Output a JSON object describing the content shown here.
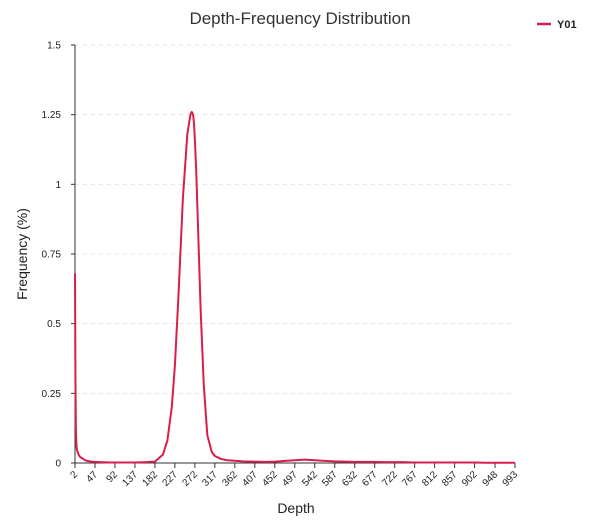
{
  "chart_data": {
    "type": "line",
    "title": "Depth-Frequency Distribution",
    "xlabel": "Depth",
    "ylabel": "Frequency (%)",
    "xlim": [
      2,
      993
    ],
    "ylim": [
      0,
      1.5
    ],
    "grid": true,
    "legend_position": "top-right",
    "x_ticks": [
      "2",
      "47",
      "92",
      "137",
      "182",
      "227",
      "272",
      "317",
      "362",
      "407",
      "452",
      "497",
      "542",
      "587",
      "632",
      "677",
      "722",
      "767",
      "812",
      "857",
      "902",
      "948",
      "993"
    ],
    "y_ticks": [
      "0",
      "0.25",
      "0.5",
      "0.75",
      "1",
      "1.25",
      "1.5"
    ],
    "series": [
      {
        "name": "Y01",
        "color": "#d81e4a",
        "x": [
          2,
          3,
          4,
          5,
          6,
          8,
          10,
          12,
          15,
          20,
          25,
          30,
          40,
          47,
          60,
          80,
          92,
          110,
          137,
          160,
          182,
          200,
          210,
          220,
          227,
          235,
          245,
          255,
          262,
          265,
          268,
          270,
          272,
          275,
          280,
          285,
          292,
          300,
          310,
          317,
          330,
          345,
          362,
          380,
          407,
          430,
          452,
          480,
          497,
          520,
          542,
          560,
          587,
          610,
          632,
          660,
          677,
          700,
          722,
          740,
          767,
          790,
          812,
          830,
          857,
          880,
          902,
          925,
          948,
          970,
          993
        ],
        "values": [
          0.68,
          0.3,
          0.12,
          0.07,
          0.05,
          0.04,
          0.03,
          0.025,
          0.02,
          0.015,
          0.01,
          0.007,
          0.005,
          0.004,
          0.003,
          0.002,
          0.002,
          0.002,
          0.002,
          0.003,
          0.005,
          0.03,
          0.08,
          0.2,
          0.35,
          0.6,
          0.95,
          1.18,
          1.25,
          1.26,
          1.25,
          1.22,
          1.16,
          1.05,
          0.8,
          0.55,
          0.28,
          0.1,
          0.04,
          0.025,
          0.015,
          0.01,
          0.008,
          0.006,
          0.005,
          0.004,
          0.005,
          0.008,
          0.01,
          0.012,
          0.01,
          0.008,
          0.006,
          0.005,
          0.004,
          0.004,
          0.004,
          0.003,
          0.003,
          0.003,
          0.002,
          0.002,
          0.002,
          0.002,
          0.002,
          0.002,
          0.002,
          0.001,
          0.001,
          0.001,
          0.001
        ]
      }
    ]
  }
}
